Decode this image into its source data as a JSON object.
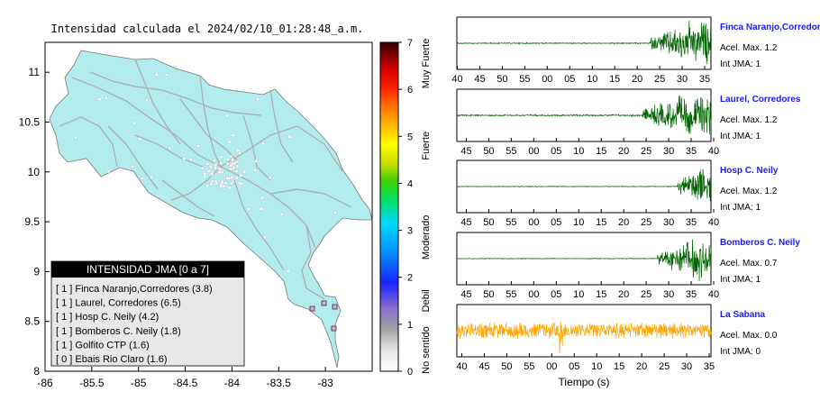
{
  "map": {
    "title": "Intensidad calculada el 2024/02/10_01:28:48_a.m.",
    "x_ticks": [
      "-86",
      "-85.5",
      "-85",
      "-84.5",
      "-84",
      "-83.5",
      "-83"
    ],
    "y_ticks": [
      "11",
      "10.5",
      "10",
      "9.5",
      "9",
      "8.5",
      "8"
    ],
    "xlim": [
      -86,
      -82.5
    ],
    "ylim": [
      8,
      11.3
    ],
    "land_color": "#b3ecec",
    "road_color": "#aaaaaa",
    "legend": {
      "title": "INTENSIDAD JMA [0 a 7]",
      "entries": [
        "[ 1 ]  Finca Naranjo,Corredores (3.8)",
        "[ 1 ]  Laurel, Corredores (6.5)",
        "[ 1 ]  Hosp C. Neily (4.2)",
        "[ 1 ]  Bomberos C. Neily (1.8)",
        "[ 1 ]  Golfito CTP (1.6)",
        "[ 0 ]  Ebais Rio Claro (1.6)"
      ]
    }
  },
  "colorbar": {
    "ticks": [
      "0",
      "1",
      "2",
      "3",
      "4",
      "5",
      "6",
      "7"
    ],
    "labels": [
      "No sentido",
      "Debil",
      "Moderado",
      "Fuerte",
      "Muy Fuerte"
    ]
  },
  "waveforms": {
    "xlabel": "Tiempo (s)",
    "panels": [
      {
        "name": "Finca Naranjo,Corredores",
        "acel": "Acel. Max. 1.2",
        "int": "Int JMA: 1",
        "ticks": [
          "40",
          "45",
          "50",
          "55",
          "00",
          "05",
          "10",
          "15",
          "20",
          "25",
          "30",
          "35"
        ],
        "tick_start": 40,
        "span": 56.5,
        "onset": 0.76,
        "color": "#006400",
        "noise": 0.03
      },
      {
        "name": "Laurel, Corredores",
        "acel": "Acel. Max. 1.2",
        "int": "Int JMA: 1",
        "ticks": [
          "45",
          "50",
          "55",
          "00",
          "05",
          "10",
          "15",
          "20",
          "25",
          "30",
          "35",
          "40"
        ],
        "tick_start": 42,
        "span": 56.5,
        "onset": 0.73,
        "color": "#006400",
        "noise": 0.04
      },
      {
        "name": "Hosp C. Neily",
        "acel": "Acel. Max. 1.2",
        "int": "Int JMA: 1",
        "ticks": [
          "45",
          "50",
          "55",
          "00",
          "05",
          "10",
          "15",
          "20",
          "25",
          "30",
          "35",
          "40"
        ],
        "tick_start": 42,
        "span": 56.5,
        "onset": 0.87,
        "color": "#006400",
        "noise": 0.02
      },
      {
        "name": "Bomberos C. Neily",
        "acel": "Acel. Max. 0.7",
        "int": "Int JMA: 1",
        "ticks": [
          "45",
          "50",
          "55",
          "00",
          "05",
          "10",
          "15",
          "20",
          "25",
          "30",
          "35",
          "40"
        ],
        "tick_start": 42,
        "span": 56.5,
        "onset": 0.79,
        "color": "#006400",
        "noise": 0.02
      },
      {
        "name": "La Sabana",
        "acel": "Acel. Max. 0.0",
        "int": "Int JMA: 0",
        "ticks": [
          "40",
          "45",
          "50",
          "55",
          "00",
          "05",
          "10",
          "15",
          "20",
          "25",
          "30",
          "35"
        ],
        "tick_start": 41,
        "span": 56.5,
        "onset": null,
        "color": "#ffa500",
        "noise": 0.35
      }
    ]
  }
}
